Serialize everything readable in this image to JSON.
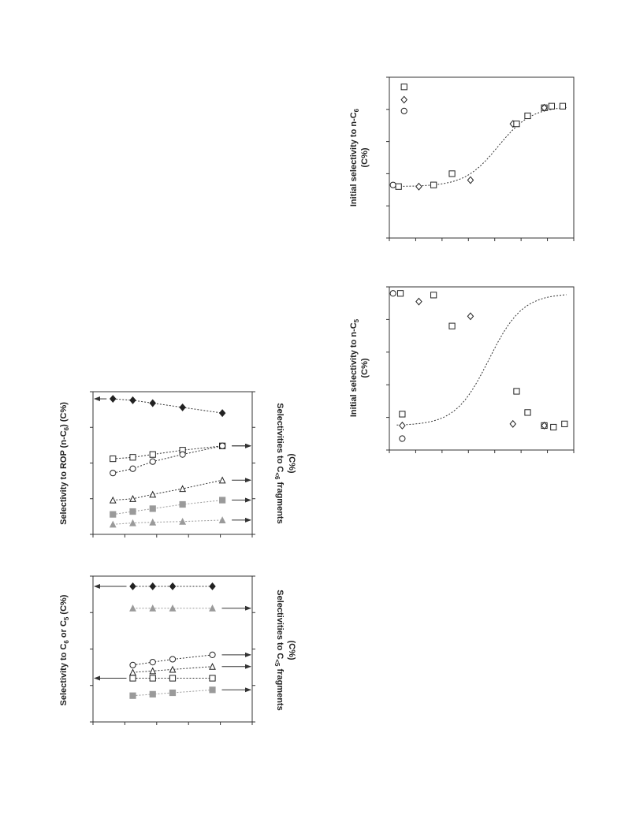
{
  "charts": {
    "top_right": {
      "type": "scatter",
      "ylabel_line1": "Initial selectivity to n-C",
      "ylabel_sub": "6",
      "ylabel_line2": "(C%)",
      "xlim": [
        0,
        10
      ],
      "ylim": [
        0,
        10
      ],
      "points": [
        {
          "x": 0.2,
          "y": 3.3,
          "marker": "circle"
        },
        {
          "x": 0.5,
          "y": 3.2,
          "marker": "square"
        },
        {
          "x": 1.6,
          "y": 3.2,
          "marker": "diamond"
        },
        {
          "x": 2.4,
          "y": 3.3,
          "marker": "square"
        },
        {
          "x": 3.4,
          "y": 4.0,
          "marker": "square"
        },
        {
          "x": 4.4,
          "y": 3.6,
          "marker": "diamond"
        },
        {
          "x": 6.7,
          "y": 7.1,
          "marker": "diamond"
        },
        {
          "x": 6.9,
          "y": 7.1,
          "marker": "square"
        },
        {
          "x": 7.5,
          "y": 7.6,
          "marker": "square"
        },
        {
          "x": 8.4,
          "y": 8.1,
          "marker": "square"
        },
        {
          "x": 8.4,
          "y": 8.1,
          "marker": "diamond"
        },
        {
          "x": 8.8,
          "y": 8.2,
          "marker": "square"
        },
        {
          "x": 9.4,
          "y": 8.2,
          "marker": "square"
        },
        {
          "x": 0.8,
          "y": 9.4,
          "marker": "square"
        },
        {
          "x": 0.8,
          "y": 8.6,
          "marker": "diamond"
        },
        {
          "x": 0.8,
          "y": 7.9,
          "marker": "circle"
        }
      ],
      "fit_curve": {
        "low": 3.2,
        "high": 8.2,
        "mid": 5.9,
        "k": 1.1,
        "x_start": 0.4,
        "x_end": 9.6
      }
    },
    "middle_right": {
      "type": "scatter",
      "ylabel_line1": "Initial selectivity to n-C",
      "ylabel_sub": "5",
      "ylabel_line2": "(C%)",
      "xlim": [
        0,
        10
      ],
      "ylim": [
        0,
        10
      ],
      "points": [
        {
          "x": 0.2,
          "y": 9.6,
          "marker": "circle"
        },
        {
          "x": 0.6,
          "y": 9.6,
          "marker": "square"
        },
        {
          "x": 1.6,
          "y": 9.1,
          "marker": "diamond"
        },
        {
          "x": 2.4,
          "y": 9.5,
          "marker": "square"
        },
        {
          "x": 3.4,
          "y": 7.6,
          "marker": "square"
        },
        {
          "x": 4.4,
          "y": 8.2,
          "marker": "diamond"
        },
        {
          "x": 6.7,
          "y": 1.6,
          "marker": "diamond"
        },
        {
          "x": 6.9,
          "y": 3.6,
          "marker": "square"
        },
        {
          "x": 7.5,
          "y": 2.3,
          "marker": "square"
        },
        {
          "x": 8.4,
          "y": 1.5,
          "marker": "square"
        },
        {
          "x": 8.4,
          "y": 1.5,
          "marker": "diamond"
        },
        {
          "x": 8.9,
          "y": 1.4,
          "marker": "square"
        },
        {
          "x": 9.5,
          "y": 1.6,
          "marker": "square"
        },
        {
          "x": 0.7,
          "y": 2.2,
          "marker": "square"
        },
        {
          "x": 0.7,
          "y": 1.5,
          "marker": "diamond"
        },
        {
          "x": 0.7,
          "y": 0.7,
          "marker": "circle"
        }
      ],
      "fit_curve": {
        "low": 1.5,
        "high": 9.6,
        "mid": 5.4,
        "k": 1.1,
        "x_start": 0.4,
        "x_end": 9.6
      }
    },
    "bottom_upper": {
      "type": "line",
      "ylabel_left_line1": "Selectivity to ROP (n-C",
      "ylabel_left_sub": "6",
      "ylabel_left_line2": ") (C%)",
      "ylabel_right_line1": "Selectivities to C",
      "ylabel_right_sub": "<6",
      "ylabel_right_line2": " fragments",
      "ylabel_right_line3": "(C%)",
      "x": [
        1,
        2,
        3,
        4.5,
        6.5
      ],
      "xlim": [
        0,
        8
      ],
      "ylim": [
        0,
        10
      ],
      "series": [
        {
          "marker": "diamond-filled",
          "values": [
            9.5,
            9.4,
            9.2,
            8.9,
            8.5
          ],
          "axis": "left"
        },
        {
          "marker": "square",
          "values": [
            5.3,
            5.4,
            5.6,
            5.9,
            6.2
          ],
          "axis": "right"
        },
        {
          "marker": "circle",
          "values": [
            4.3,
            4.6,
            5.1,
            5.6,
            6.2
          ],
          "axis": "right"
        },
        {
          "marker": "triangle",
          "values": [
            2.4,
            2.5,
            2.8,
            3.2,
            3.8
          ],
          "axis": "right"
        },
        {
          "marker": "square-gray",
          "values": [
            1.4,
            1.6,
            1.8,
            2.1,
            2.4
          ],
          "axis": "right"
        },
        {
          "marker": "triangle-gray",
          "values": [
            0.7,
            0.8,
            0.85,
            0.9,
            1.0
          ],
          "axis": "right"
        }
      ]
    },
    "bottom_lower": {
      "type": "line",
      "ylabel_left_line1": "Selectivity to C",
      "ylabel_left_sub1": "6",
      "ylabel_left_mid": " or C",
      "ylabel_left_sub2": "5",
      "ylabel_left_line2": " (C%)",
      "ylabel_right_line1": "Selectivities to C",
      "ylabel_right_sub": "<5",
      "ylabel_right_line2": " fragments",
      "ylabel_right_line3": "(C%)",
      "x": [
        2,
        3,
        4,
        6
      ],
      "xlim": [
        0,
        8
      ],
      "ylim": [
        0,
        10
      ],
      "series": [
        {
          "marker": "diamond-filled",
          "values": [
            9.3,
            9.3,
            9.3,
            9.3
          ],
          "axis": "left"
        },
        {
          "marker": "triangle-gray",
          "values": [
            7.8,
            7.8,
            7.8,
            7.8
          ],
          "axis": "right"
        },
        {
          "marker": "circle",
          "values": [
            3.9,
            4.1,
            4.3,
            4.6
          ],
          "axis": "right"
        },
        {
          "marker": "triangle",
          "values": [
            3.4,
            3.5,
            3.6,
            3.8
          ],
          "axis": "right"
        },
        {
          "marker": "square",
          "values": [
            3.0,
            3.0,
            3.0,
            3.0
          ],
          "axis": "left"
        },
        {
          "marker": "square-gray",
          "values": [
            1.8,
            1.9,
            2.0,
            2.2
          ],
          "axis": "right"
        }
      ]
    }
  },
  "colors": {
    "axis": "#333333",
    "marker": "#222222",
    "gray_marker": "#9a9a9a",
    "fit": "#333333"
  }
}
